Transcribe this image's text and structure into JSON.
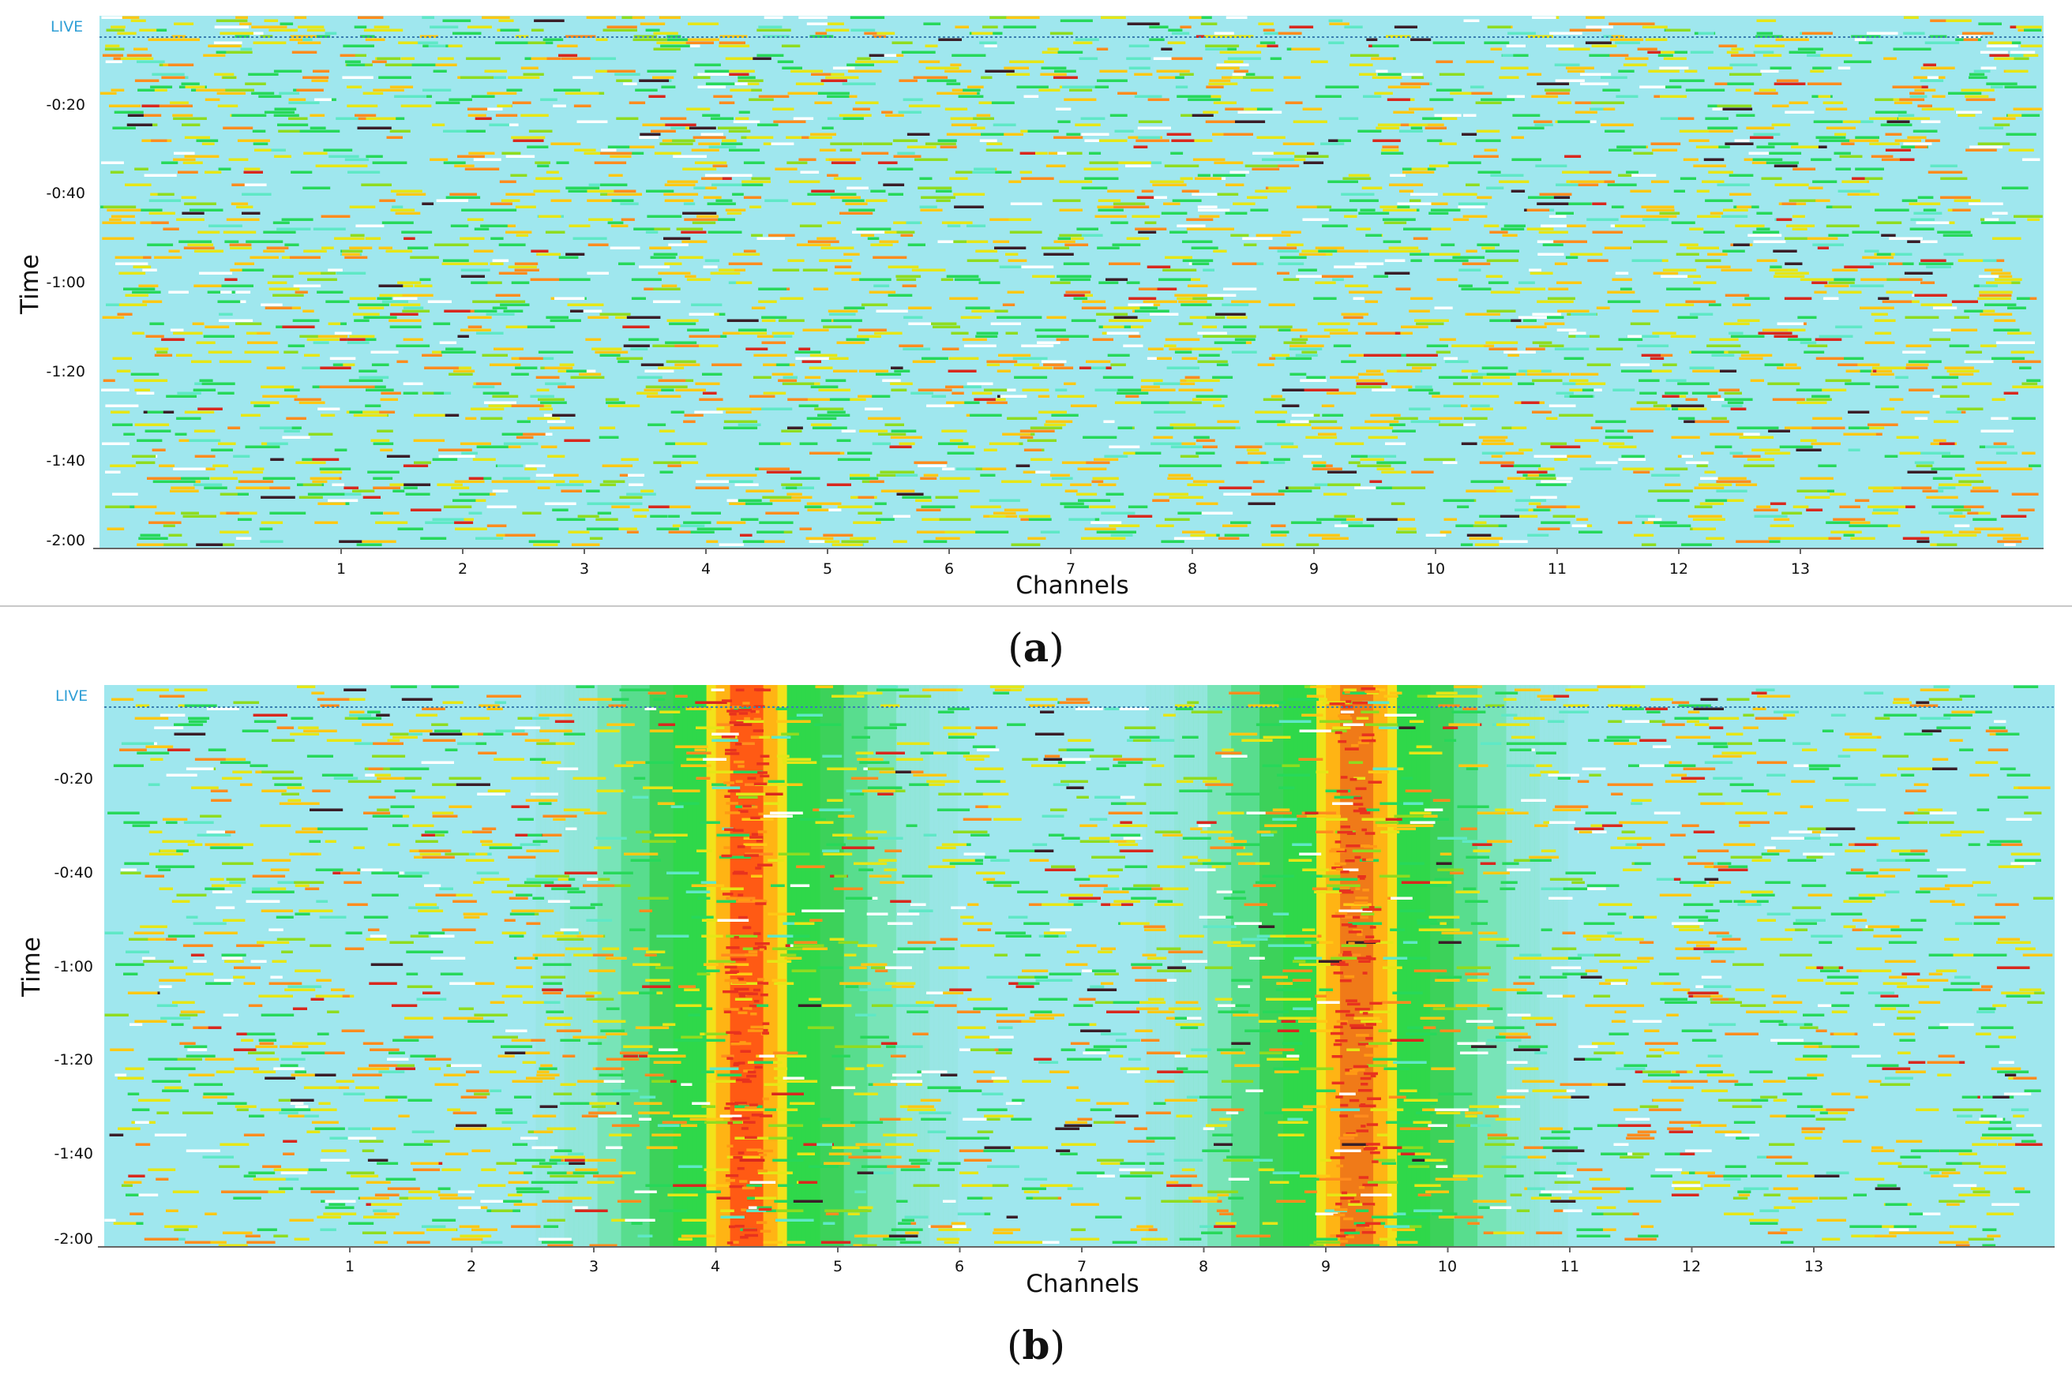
{
  "colors": {
    "background": "#9fe7ee",
    "live_marker": "#2f9fd6",
    "axis": "#666666",
    "separator": "#c8c8c8",
    "scale": [
      "#c8f4f6",
      "#5fe8c6",
      "#27d85a",
      "#8fdc20",
      "#e6e616",
      "#ffc814",
      "#ff8c1e",
      "#d8281e",
      "#3a1e28"
    ]
  },
  "figure": {
    "type": "waterfall spectrogram (channel vs time)"
  },
  "chart_data": [
    {
      "type": "heatmap",
      "panel_label": "a",
      "live_label": "LIVE",
      "xlabel": "Channels",
      "ylabel": "Time",
      "x_ticks": [
        "1",
        "2",
        "3",
        "4",
        "5",
        "6",
        "7",
        "8",
        "9",
        "10",
        "11",
        "12",
        "13"
      ],
      "y_ticks": [
        "-0:20",
        "-0:40",
        "-1:00",
        "-1:20",
        "-1:40",
        "-2:00"
      ],
      "xlim": [
        -1.0,
        15.0
      ],
      "ylim": [
        -120,
        0
      ],
      "grid": false,
      "legend": "none",
      "bands": [],
      "seed": 11
    },
    {
      "type": "heatmap",
      "panel_label": "b",
      "live_label": "LIVE",
      "xlabel": "Channels",
      "ylabel": "Time",
      "x_ticks": [
        "1",
        "2",
        "3",
        "4",
        "5",
        "6",
        "7",
        "8",
        "9",
        "10",
        "11",
        "12",
        "13"
      ],
      "y_ticks": [
        "-0:20",
        "-0:40",
        "-1:00",
        "-1:20",
        "-1:40",
        "-2:00"
      ],
      "xlim": [
        -1.0,
        15.0
      ],
      "ylim": [
        -120,
        0
      ],
      "grid": false,
      "legend": "none",
      "bands": [
        {
          "center_channel": 4.25,
          "half_width_channels": 1.15
        },
        {
          "center_channel": 9.25,
          "half_width_channels": 1.15
        }
      ],
      "seed": 29
    }
  ]
}
